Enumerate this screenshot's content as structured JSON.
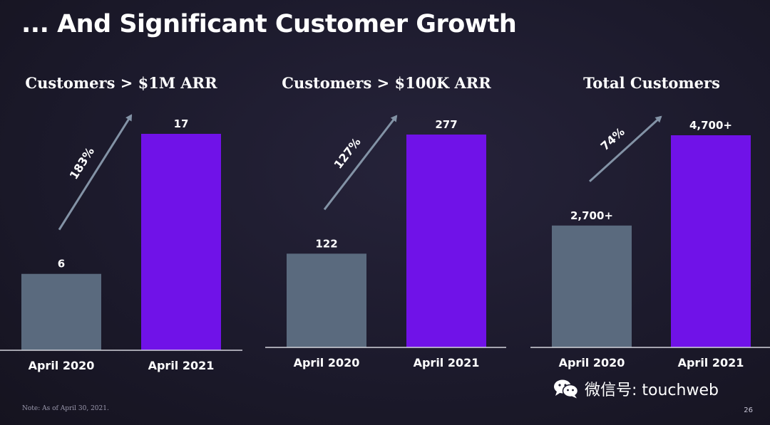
{
  "slide": {
    "title": "... And Significant Customer Growth",
    "footnote": "Note: As of April 30, 2021.",
    "page_number": "26",
    "watermark": "微信号: touchweb"
  },
  "colors": {
    "background": "#1c1a2c",
    "bar_2020": "#5a6a7e",
    "bar_2021": "#7012e8",
    "arrow": "#8393a6",
    "baseline": "#d4d4dc"
  },
  "chart_data": [
    {
      "type": "bar",
      "title": "Customers > $1M ARR",
      "categories": [
        "April 2020",
        "April 2021"
      ],
      "values": [
        6,
        17
      ],
      "value_labels": [
        "6",
        "17"
      ],
      "growth_label": "183%",
      "ylim": [
        0,
        17
      ]
    },
    {
      "type": "bar",
      "title": "Customers > $100K ARR",
      "categories": [
        "April 2020",
        "April 2021"
      ],
      "values": [
        122,
        277
      ],
      "value_labels": [
        "122",
        "277"
      ],
      "growth_label": "127%",
      "ylim": [
        0,
        277
      ]
    },
    {
      "type": "bar",
      "title": "Total Customers",
      "categories": [
        "April 2020",
        "April 2021"
      ],
      "values": [
        2700,
        4700
      ],
      "value_labels": [
        "2,700+",
        "4,700+"
      ],
      "growth_label": "74%",
      "ylim": [
        0,
        4700
      ]
    }
  ]
}
